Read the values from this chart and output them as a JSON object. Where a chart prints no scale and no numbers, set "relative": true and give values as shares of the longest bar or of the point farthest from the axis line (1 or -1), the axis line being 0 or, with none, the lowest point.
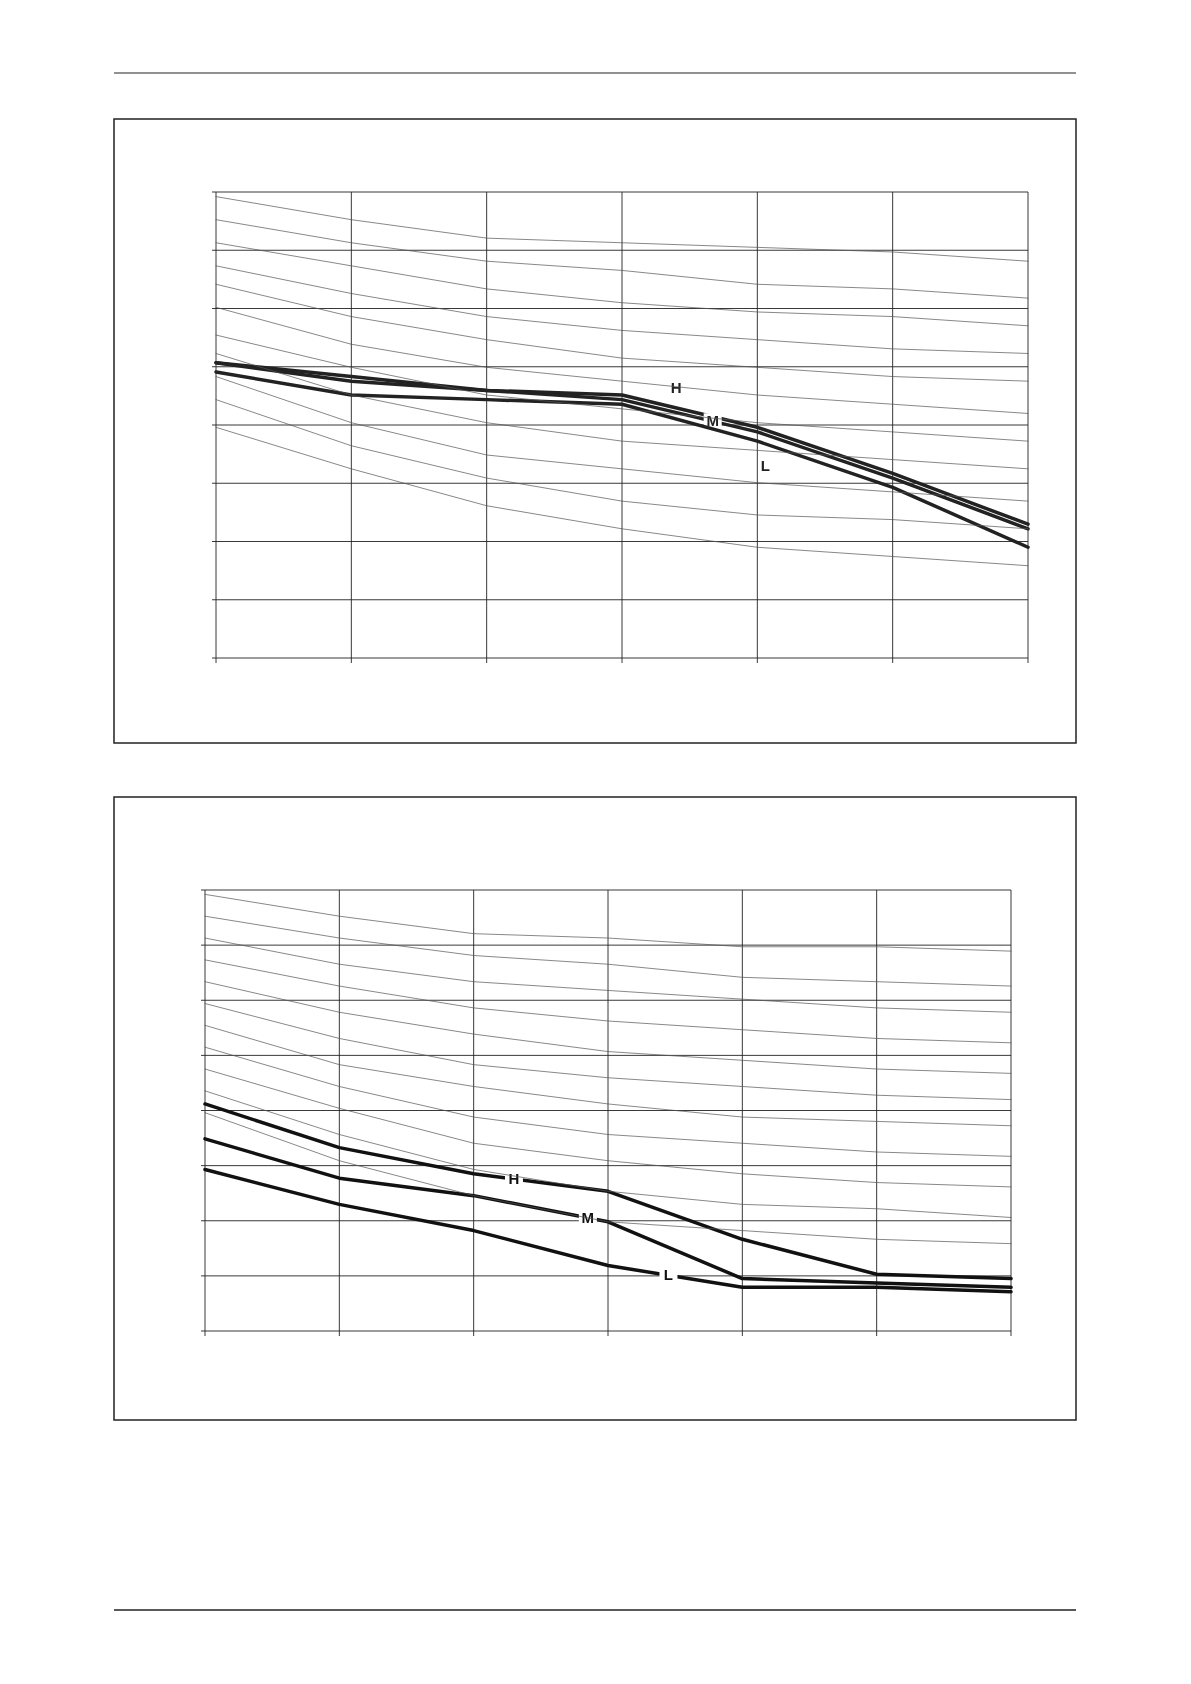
{
  "chart_data": [
    {
      "type": "line",
      "relative": true,
      "grid": true,
      "categories": [
        null,
        null,
        null,
        null,
        null,
        null,
        null
      ],
      "series": [
        {
          "name": "H",
          "color": "#222222",
          "values": [
            0.64,
            0.61,
            0.58,
            0.57,
            0.5,
            0.4,
            0.29
          ]
        },
        {
          "name": "M",
          "color": "#222222",
          "values": [
            0.64,
            0.6,
            0.58,
            0.56,
            0.49,
            0.39,
            0.28
          ]
        },
        {
          "name": "L",
          "color": "#222222",
          "values": [
            0.62,
            0.57,
            0.56,
            0.55,
            0.47,
            0.37,
            0.24
          ]
        },
        {
          "color": "#555555",
          "values": [
            1.0,
            0.95,
            0.91,
            0.9,
            0.89,
            0.88,
            0.86
          ]
        },
        {
          "color": "#555555",
          "values": [
            0.95,
            0.9,
            0.86,
            0.84,
            0.81,
            0.8,
            0.78
          ]
        },
        {
          "color": "#555555",
          "values": [
            0.9,
            0.85,
            0.8,
            0.77,
            0.75,
            0.74,
            0.72
          ]
        },
        {
          "color": "#555555",
          "values": [
            0.85,
            0.79,
            0.74,
            0.71,
            0.69,
            0.67,
            0.66
          ]
        },
        {
          "color": "#555555",
          "values": [
            0.81,
            0.74,
            0.69,
            0.65,
            0.63,
            0.61,
            0.6
          ]
        },
        {
          "color": "#555555",
          "values": [
            0.76,
            0.68,
            0.63,
            0.6,
            0.57,
            0.55,
            0.53
          ]
        },
        {
          "color": "#555555",
          "values": [
            0.7,
            0.63,
            0.57,
            0.54,
            0.51,
            0.49,
            0.47
          ]
        },
        {
          "color": "#555555",
          "values": [
            0.66,
            0.57,
            0.51,
            0.47,
            0.45,
            0.43,
            0.41
          ]
        },
        {
          "color": "#555555",
          "values": [
            0.61,
            0.51,
            0.44,
            0.41,
            0.38,
            0.36,
            0.34
          ]
        },
        {
          "color": "#555555",
          "values": [
            0.56,
            0.46,
            0.39,
            0.34,
            0.31,
            0.3,
            0.28
          ]
        },
        {
          "color": "#555555",
          "values": [
            0.5,
            0.41,
            0.33,
            0.28,
            0.24,
            0.22,
            0.2
          ]
        }
      ]
    },
    {
      "type": "line",
      "relative": true,
      "grid": true,
      "categories": [
        null,
        null,
        null,
        null,
        null,
        null,
        null
      ],
      "series": [
        {
          "name": "H",
          "color": "#111111",
          "values": [
            0.52,
            0.42,
            0.36,
            0.32,
            0.21,
            0.13,
            0.12
          ]
        },
        {
          "name": "M",
          "color": "#111111",
          "values": [
            0.44,
            0.35,
            0.31,
            0.25,
            0.12,
            0.11,
            0.1
          ]
        },
        {
          "name": "L",
          "color": "#111111",
          "values": [
            0.37,
            0.29,
            0.23,
            0.15,
            0.1,
            0.1,
            0.09
          ]
        },
        {
          "color": "#555555",
          "values": [
            1.0,
            0.95,
            0.91,
            0.9,
            0.88,
            0.88,
            0.87
          ]
        },
        {
          "color": "#555555",
          "values": [
            0.95,
            0.9,
            0.86,
            0.84,
            0.81,
            0.8,
            0.79
          ]
        },
        {
          "color": "#555555",
          "values": [
            0.9,
            0.84,
            0.8,
            0.78,
            0.76,
            0.74,
            0.73
          ]
        },
        {
          "color": "#555555",
          "values": [
            0.85,
            0.79,
            0.74,
            0.71,
            0.69,
            0.67,
            0.66
          ]
        },
        {
          "color": "#555555",
          "values": [
            0.8,
            0.73,
            0.68,
            0.64,
            0.62,
            0.6,
            0.59
          ]
        },
        {
          "color": "#555555",
          "values": [
            0.75,
            0.67,
            0.61,
            0.58,
            0.56,
            0.54,
            0.53
          ]
        },
        {
          "color": "#555555",
          "values": [
            0.7,
            0.61,
            0.56,
            0.52,
            0.49,
            0.48,
            0.47
          ]
        },
        {
          "color": "#555555",
          "values": [
            0.65,
            0.56,
            0.49,
            0.45,
            0.43,
            0.41,
            0.4
          ]
        },
        {
          "color": "#555555",
          "values": [
            0.6,
            0.51,
            0.43,
            0.39,
            0.36,
            0.34,
            0.33
          ]
        },
        {
          "color": "#555555",
          "values": [
            0.55,
            0.45,
            0.37,
            0.32,
            0.29,
            0.28,
            0.26
          ]
        },
        {
          "color": "#555555",
          "values": [
            0.5,
            0.39,
            0.31,
            0.25,
            0.23,
            0.21,
            0.2
          ]
        }
      ]
    }
  ]
}
